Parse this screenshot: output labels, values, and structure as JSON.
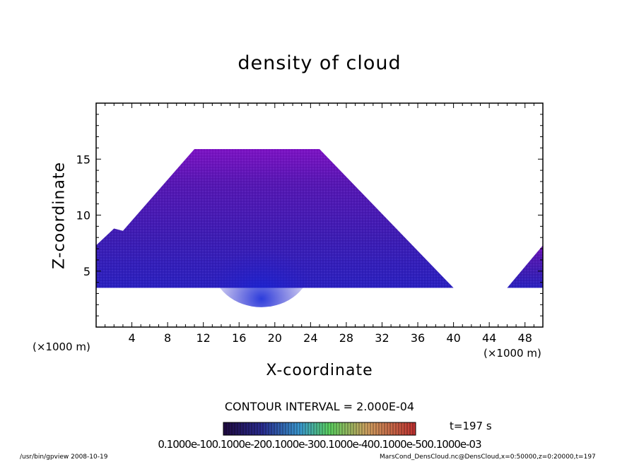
{
  "chart_data": {
    "type": "heatmap",
    "title": "density of cloud",
    "xlabel": "X-coordinate",
    "ylabel": "Z-coordinate",
    "x_unit_label": "(×1000 m)",
    "x_unit_label_right": "(×1000 m)",
    "x_range": [
      0,
      50
    ],
    "y_range": [
      0,
      20
    ],
    "x_ticks": [
      "4",
      "8",
      "12",
      "16",
      "20",
      "24",
      "28",
      "32",
      "36",
      "40",
      "44",
      "48"
    ],
    "y_ticks": [
      "5",
      "10",
      "15"
    ],
    "cloud_regions": [
      {
        "name": "main",
        "outline_x": [
          0,
          0,
          2,
          3,
          11,
          25,
          40,
          39.5,
          39,
          0
        ],
        "outline_z": [
          3.5,
          7.3,
          8.8,
          8.6,
          15.9,
          15.9,
          3.5,
          3.5,
          3.5,
          3.5
        ]
      },
      {
        "name": "right",
        "outline_x": [
          46,
          50,
          50,
          46
        ],
        "outline_z": [
          3.5,
          7.3,
          3.5,
          3.5
        ]
      }
    ],
    "density_peak": {
      "x": 18.5,
      "z": 4.3
    },
    "contour_interval": "CONTOUR INTERVAL = 2.000E-04",
    "colorbar_ticks": "0.1000e-100.1000e-200.1000e-300.1000e-400.1000e-500.1000e-03",
    "time_label": "t=197  s",
    "colors": {
      "high": "#1a22c8",
      "mid": "#3a18b0",
      "low": "#7a12c0"
    }
  },
  "footer": {
    "left": "/usr/bin/gpview   2008-10-19",
    "right": "MarsCond_DensCloud.nc@DensCloud,x=0:50000,z=0:20000,t=197"
  }
}
